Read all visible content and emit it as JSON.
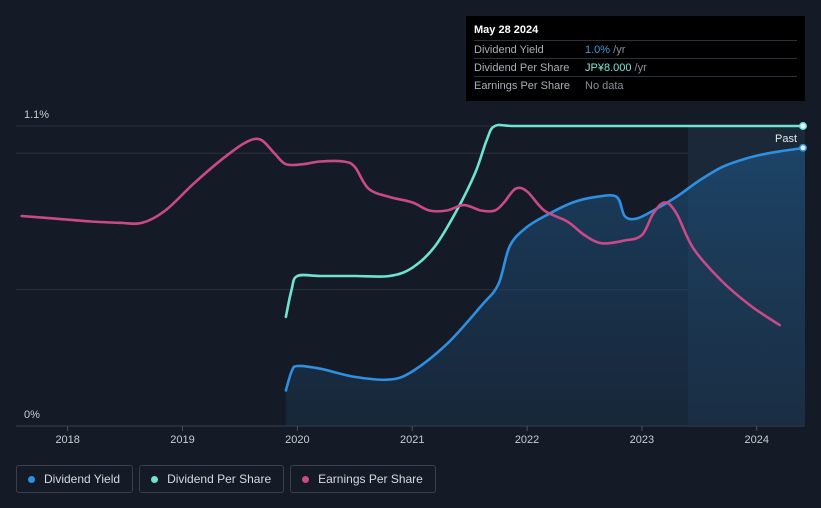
{
  "tooltip": {
    "date": "May 28 2024",
    "rows": [
      {
        "label": "Dividend Yield",
        "value": "1.0%",
        "unit": " /yr"
      },
      {
        "label": "Dividend Per Share",
        "value": "JP¥8.000",
        "unit": " /yr"
      },
      {
        "label": "Earnings Per Share",
        "value": "No data",
        "unit": ""
      }
    ]
  },
  "legend": [
    {
      "label": "Dividend Yield",
      "color": "#2f8fe0"
    },
    {
      "label": "Dividend Per Share",
      "color": "#6fe3cf"
    },
    {
      "label": "Earnings Per Share",
      "color": "#c94a87"
    }
  ],
  "chart_data": {
    "type": "line",
    "title": "",
    "y_ticks": [
      {
        "value": 1.1,
        "label": "1.1%"
      },
      {
        "value": 0,
        "label": "0%"
      }
    ],
    "ylim": [
      0,
      1.1
    ],
    "x_ticks": [
      2018,
      2019,
      2020,
      2021,
      2022,
      2023,
      2024
    ],
    "xlim": [
      2017.55,
      2024.42
    ],
    "past_label": "Past",
    "past_start": 2023.4,
    "series": [
      {
        "name": "Dividend Yield",
        "color": "#2f8fe0",
        "area": true,
        "points": [
          [
            2019.9,
            0.13
          ],
          [
            2019.95,
            0.2
          ],
          [
            2020.0,
            0.22
          ],
          [
            2020.2,
            0.21
          ],
          [
            2020.5,
            0.18
          ],
          [
            2020.8,
            0.17
          ],
          [
            2021.0,
            0.2
          ],
          [
            2021.3,
            0.3
          ],
          [
            2021.6,
            0.44
          ],
          [
            2021.75,
            0.52
          ],
          [
            2021.85,
            0.66
          ],
          [
            2022.0,
            0.73
          ],
          [
            2022.2,
            0.78
          ],
          [
            2022.4,
            0.82
          ],
          [
            2022.6,
            0.84
          ],
          [
            2022.78,
            0.84
          ],
          [
            2022.85,
            0.77
          ],
          [
            2022.95,
            0.76
          ],
          [
            2023.1,
            0.79
          ],
          [
            2023.3,
            0.84
          ],
          [
            2023.5,
            0.9
          ],
          [
            2023.7,
            0.95
          ],
          [
            2023.9,
            0.98
          ],
          [
            2024.1,
            1.0
          ],
          [
            2024.25,
            1.01
          ],
          [
            2024.42,
            1.02
          ]
        ]
      },
      {
        "name": "Dividend Per Share",
        "color": "#6fe3cf",
        "area": false,
        "points": [
          [
            2019.9,
            0.4
          ],
          [
            2019.95,
            0.5
          ],
          [
            2020.0,
            0.55
          ],
          [
            2020.2,
            0.55
          ],
          [
            2020.5,
            0.55
          ],
          [
            2020.8,
            0.55
          ],
          [
            2021.0,
            0.58
          ],
          [
            2021.2,
            0.66
          ],
          [
            2021.4,
            0.8
          ],
          [
            2021.55,
            0.93
          ],
          [
            2021.65,
            1.05
          ],
          [
            2021.72,
            1.1
          ],
          [
            2021.9,
            1.1
          ],
          [
            2022.5,
            1.1
          ],
          [
            2023.0,
            1.1
          ],
          [
            2024.0,
            1.1
          ],
          [
            2024.42,
            1.1
          ]
        ]
      },
      {
        "name": "Earnings Per Share",
        "color": "#c94a87",
        "area": false,
        "points": [
          [
            2017.6,
            0.77
          ],
          [
            2017.9,
            0.76
          ],
          [
            2018.2,
            0.75
          ],
          [
            2018.45,
            0.745
          ],
          [
            2018.65,
            0.745
          ],
          [
            2018.85,
            0.79
          ],
          [
            2019.1,
            0.89
          ],
          [
            2019.35,
            0.98
          ],
          [
            2019.55,
            1.04
          ],
          [
            2019.68,
            1.05
          ],
          [
            2019.8,
            1.0
          ],
          [
            2019.9,
            0.96
          ],
          [
            2020.05,
            0.96
          ],
          [
            2020.2,
            0.97
          ],
          [
            2020.4,
            0.97
          ],
          [
            2020.5,
            0.95
          ],
          [
            2020.62,
            0.87
          ],
          [
            2020.8,
            0.84
          ],
          [
            2021.0,
            0.82
          ],
          [
            2021.15,
            0.79
          ],
          [
            2021.3,
            0.79
          ],
          [
            2021.45,
            0.81
          ],
          [
            2021.6,
            0.79
          ],
          [
            2021.72,
            0.79
          ],
          [
            2021.8,
            0.82
          ],
          [
            2021.9,
            0.87
          ],
          [
            2022.0,
            0.86
          ],
          [
            2022.15,
            0.79
          ],
          [
            2022.35,
            0.75
          ],
          [
            2022.5,
            0.7
          ],
          [
            2022.65,
            0.67
          ],
          [
            2022.85,
            0.68
          ],
          [
            2023.0,
            0.7
          ],
          [
            2023.1,
            0.78
          ],
          [
            2023.2,
            0.82
          ],
          [
            2023.3,
            0.78
          ],
          [
            2023.45,
            0.65
          ],
          [
            2023.7,
            0.53
          ],
          [
            2023.95,
            0.44
          ],
          [
            2024.2,
            0.37
          ]
        ]
      }
    ]
  }
}
